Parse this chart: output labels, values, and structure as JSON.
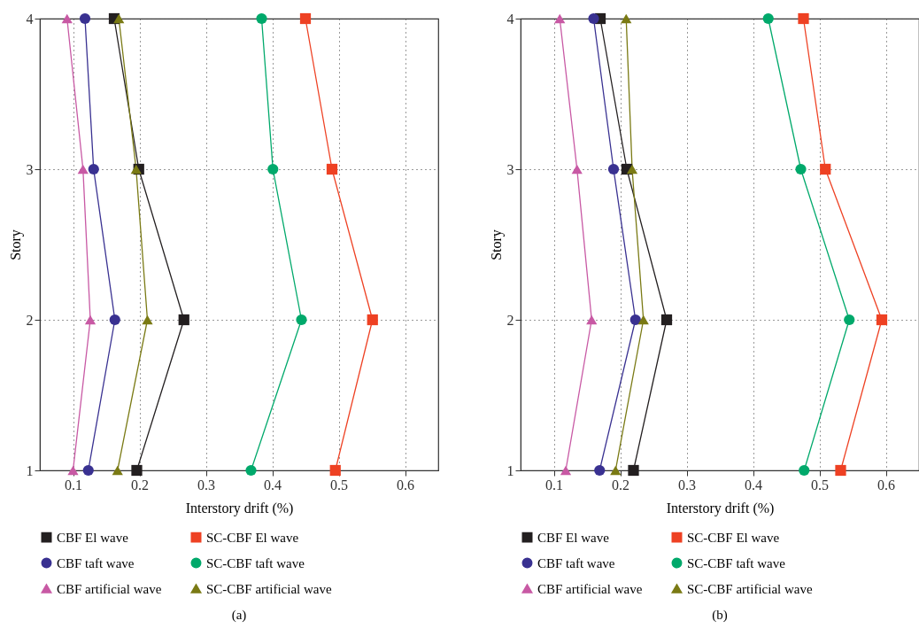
{
  "chart_data": [
    {
      "type": "line",
      "title": "(a)",
      "xlabel": "Interstory drift (%)",
      "ylabel": "Story",
      "xlim": [
        0.05,
        0.65
      ],
      "xticks": [
        0.1,
        0.2,
        0.3,
        0.4,
        0.5,
        0.6
      ],
      "ylim": [
        1,
        4
      ],
      "yticks": [
        1,
        2,
        3,
        4
      ],
      "grid": true,
      "legend": "bottom",
      "series": [
        {
          "name": "CBF El wave",
          "color": "#231f20",
          "marker": "square",
          "x": [
            0.196,
            0.267,
            0.199,
            0.162
          ],
          "values": [
            1,
            2,
            3,
            4
          ]
        },
        {
          "name": "SC-CBF El wave",
          "color": "#ee4123",
          "marker": "square",
          "x": [
            0.495,
            0.551,
            0.49,
            0.45
          ],
          "values": [
            1,
            2,
            3,
            4
          ]
        },
        {
          "name": "CBF taft wave",
          "color": "#393191",
          "marker": "circle",
          "x": [
            0.123,
            0.163,
            0.131,
            0.118
          ],
          "values": [
            1,
            2,
            3,
            4
          ]
        },
        {
          "name": "SC-CBF taft wave",
          "color": "#00a96b",
          "marker": "circle",
          "x": [
            0.368,
            0.444,
            0.401,
            0.384
          ],
          "values": [
            1,
            2,
            3,
            4
          ]
        },
        {
          "name": "CBF artificial wave",
          "color": "#c859a4",
          "marker": "triangle",
          "x": [
            0.1,
            0.126,
            0.115,
            0.091
          ],
          "values": [
            1,
            2,
            3,
            4
          ]
        },
        {
          "name": "SC-CBF artificial wave",
          "color": "#7a7a14",
          "marker": "triangle",
          "x": [
            0.167,
            0.212,
            0.195,
            0.169
          ],
          "values": [
            1,
            2,
            3,
            4
          ]
        }
      ]
    },
    {
      "type": "line",
      "title": "(b)",
      "xlabel": "Interstory drift (%)",
      "ylabel": "Story",
      "xlim": [
        0.05,
        0.65
      ],
      "xticks": [
        0.1,
        0.2,
        0.3,
        0.4,
        0.5,
        0.6
      ],
      "ylim": [
        1,
        4
      ],
      "yticks": [
        1,
        2,
        3,
        4
      ],
      "grid": true,
      "legend": "bottom",
      "series": [
        {
          "name": "CBF El wave",
          "color": "#231f20",
          "marker": "square",
          "x": [
            0.22,
            0.27,
            0.21,
            0.17
          ],
          "values": [
            1,
            2,
            3,
            4
          ]
        },
        {
          "name": "SC-CBF El wave",
          "color": "#ee4123",
          "marker": "square",
          "x": [
            0.532,
            0.594,
            0.509,
            0.476
          ],
          "values": [
            1,
            2,
            3,
            4
          ]
        },
        {
          "name": "CBF taft wave",
          "color": "#393191",
          "marker": "circle",
          "x": [
            0.169,
            0.223,
            0.19,
            0.16
          ],
          "values": [
            1,
            2,
            3,
            4
          ]
        },
        {
          "name": "SC-CBF taft wave",
          "color": "#00a96b",
          "marker": "circle",
          "x": [
            0.477,
            0.545,
            0.472,
            0.423
          ],
          "values": [
            1,
            2,
            3,
            4
          ]
        },
        {
          "name": "CBF artificial wave",
          "color": "#c859a4",
          "marker": "triangle",
          "x": [
            0.118,
            0.157,
            0.135,
            0.109
          ],
          "values": [
            1,
            2,
            3,
            4
          ]
        },
        {
          "name": "SC-CBF artificial wave",
          "color": "#7a7a14",
          "marker": "triangle",
          "x": [
            0.193,
            0.235,
            0.218,
            0.209
          ],
          "values": [
            1,
            2,
            3,
            4
          ]
        }
      ]
    }
  ]
}
